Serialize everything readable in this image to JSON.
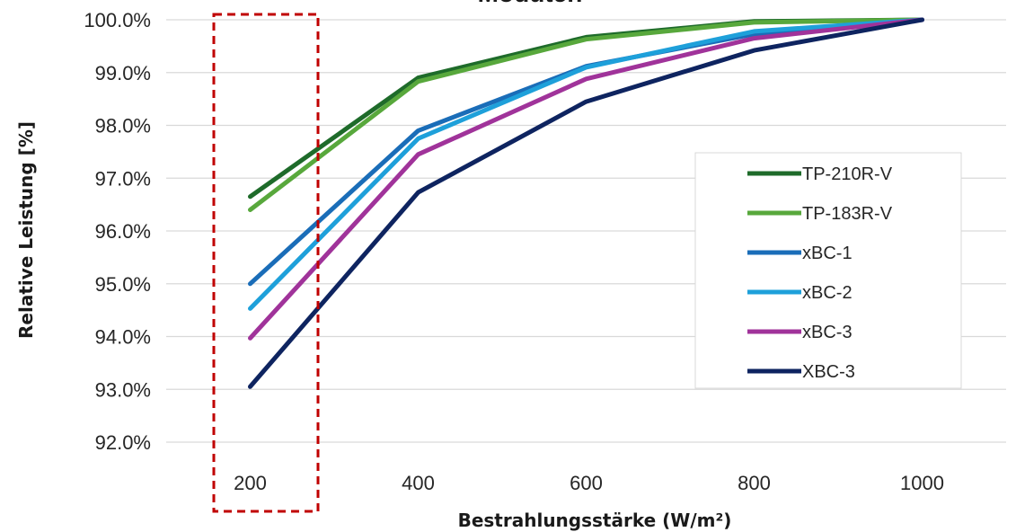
{
  "chart_data": {
    "type": "line",
    "title": "Moduten",
    "xlabel": "Bestrahlungsstärke (W/m²)",
    "ylabel": "Relative Leistung [%]",
    "categories": [
      "200",
      "400",
      "600",
      "800",
      "1000"
    ],
    "ylim": [
      92.0,
      100.0
    ],
    "yticks": [
      "92.0%",
      "93.0%",
      "94.0%",
      "95.0%",
      "96.0%",
      "97.0%",
      "98.0%",
      "99.0%",
      "100.0%"
    ],
    "grid": true,
    "legend_position": "right",
    "series": [
      {
        "name": "TP-210R-V",
        "color": "#1e6b2a",
        "values": [
          96.65,
          98.9,
          99.67,
          99.97,
          100.0
        ]
      },
      {
        "name": "TP-183R-V",
        "color": "#58a83c",
        "values": [
          96.4,
          98.83,
          99.63,
          99.95,
          100.0
        ]
      },
      {
        "name": "xBC-1",
        "color": "#1a6db8",
        "values": [
          95.0,
          97.9,
          99.12,
          99.73,
          100.0
        ]
      },
      {
        "name": "xBC-2",
        "color": "#1ea0da",
        "values": [
          94.53,
          97.75,
          99.1,
          99.78,
          100.0
        ]
      },
      {
        "name": "xBC-3",
        "color": "#a0339a",
        "values": [
          93.97,
          97.45,
          98.88,
          99.65,
          100.0
        ]
      },
      {
        "name": "XBC-3",
        "color": "#0e2460",
        "values": [
          93.05,
          96.73,
          98.45,
          99.42,
          100.0
        ]
      }
    ],
    "highlight": {
      "category": "200",
      "style": "dashed",
      "color": "#c00000"
    }
  }
}
